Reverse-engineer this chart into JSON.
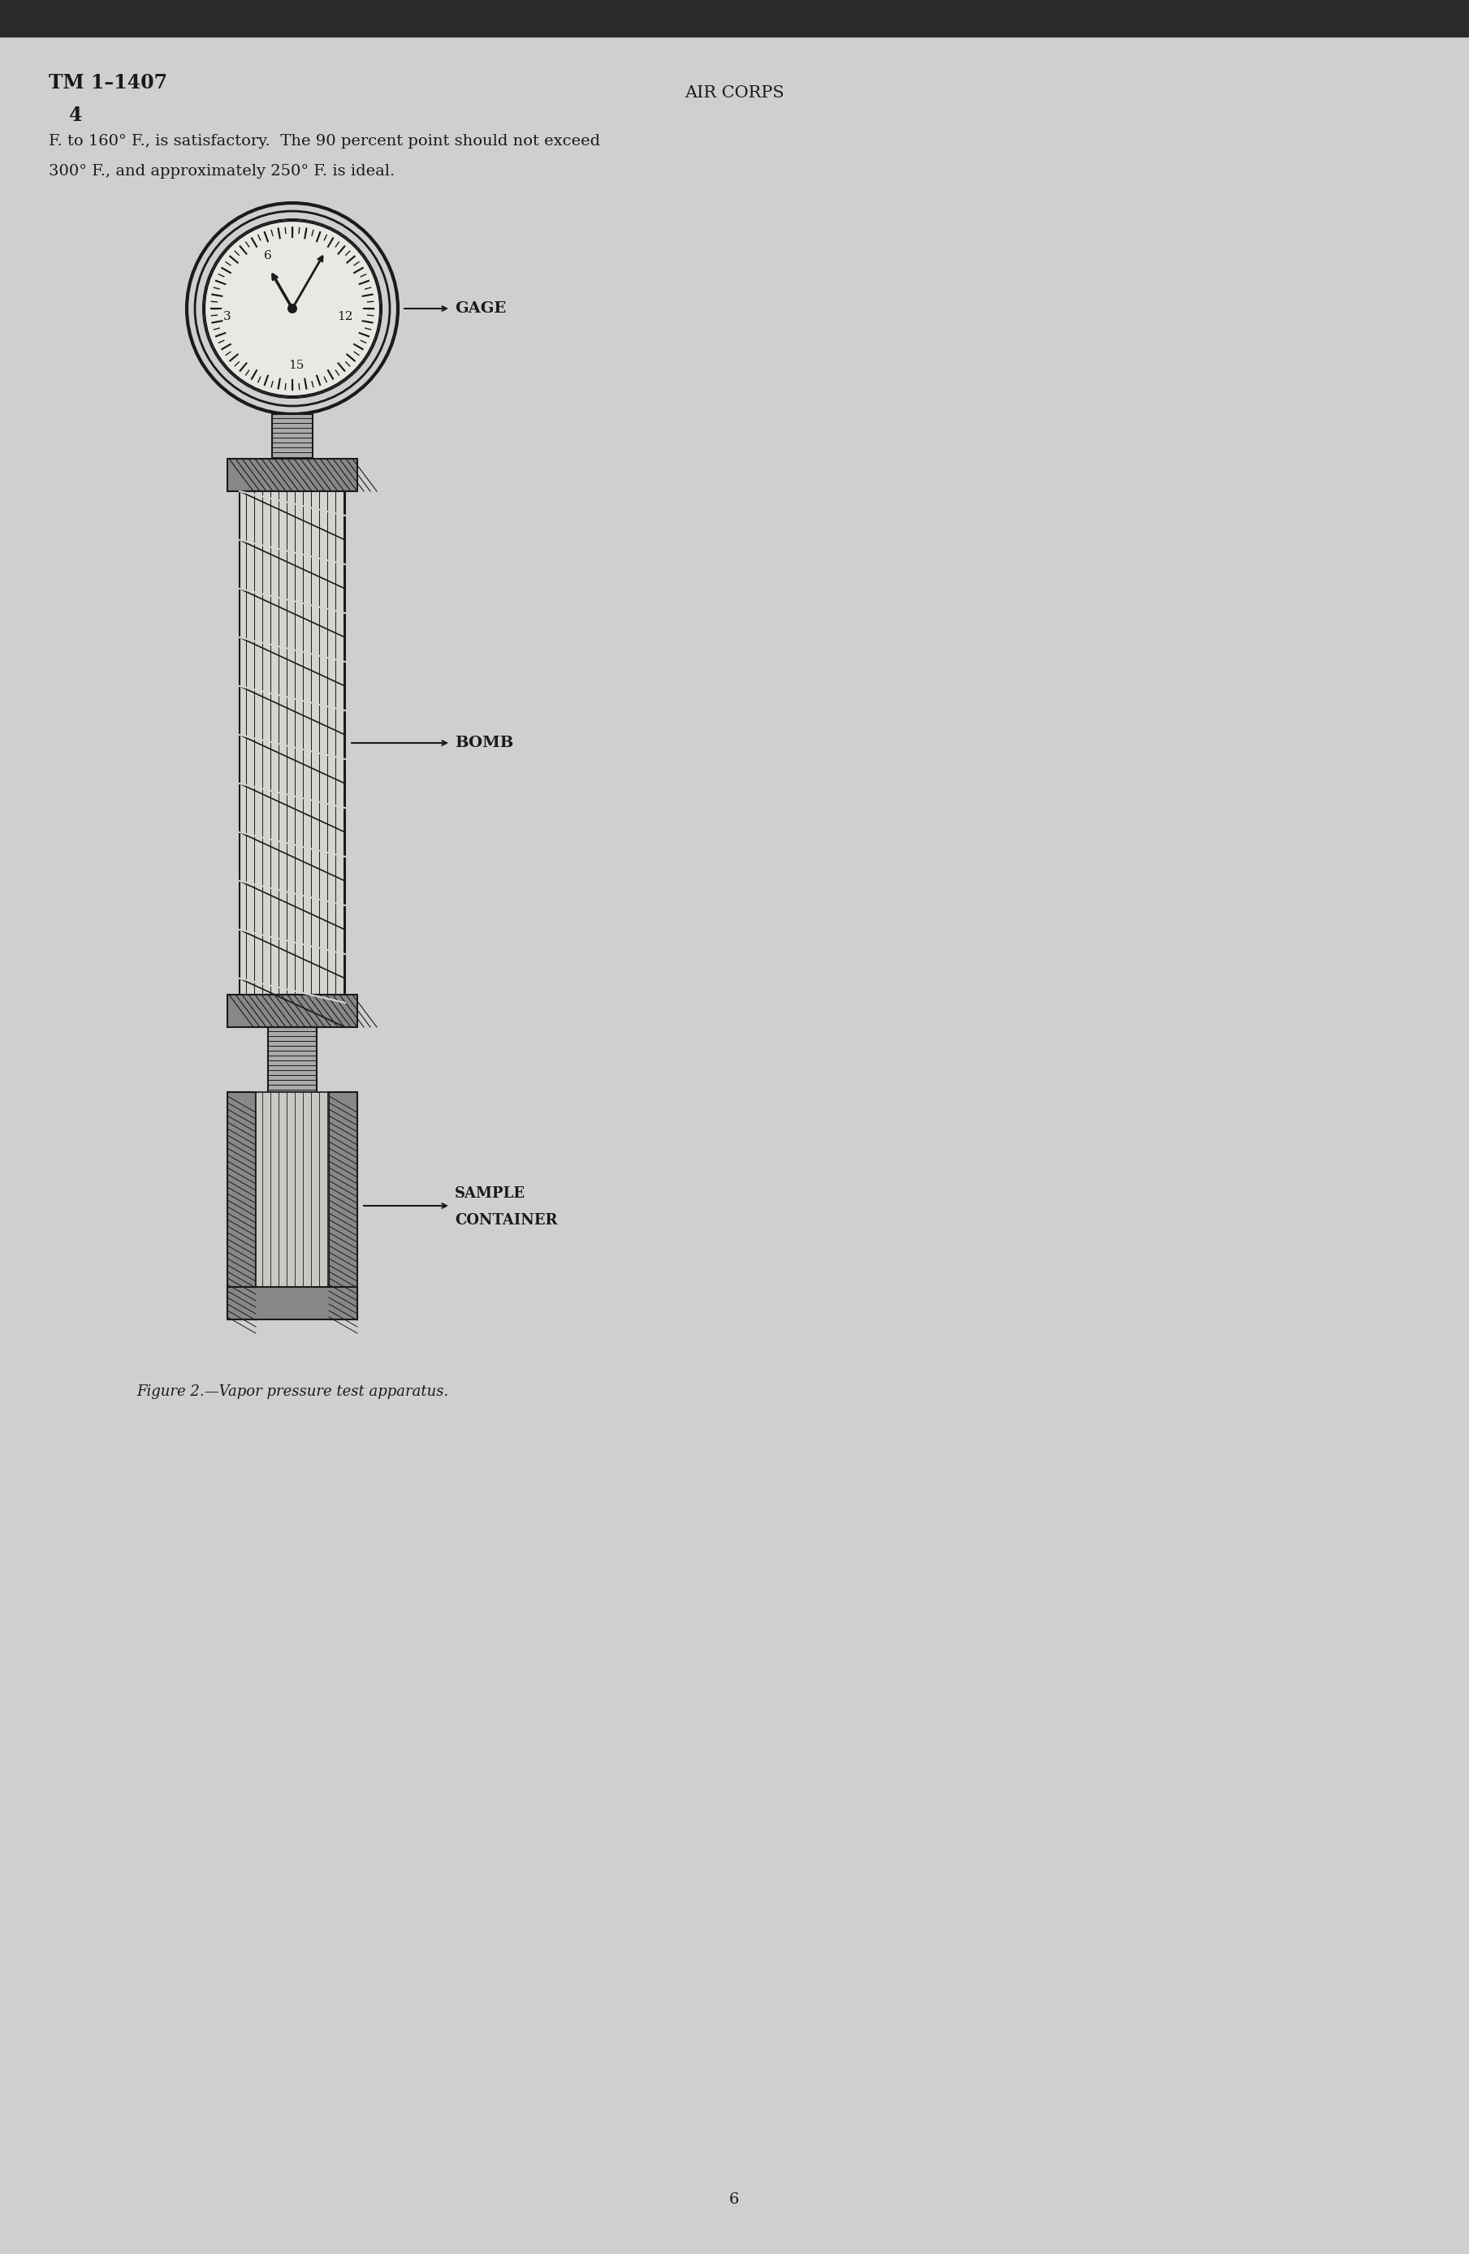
{
  "page_bg": "#d8d8d8",
  "paper_bg": "#cfd0ce",
  "header_line1": "TM 1–1407",
  "header_line2": "4",
  "header_center": "AIR CORPS",
  "body_text_line1": "F. to 160° F., is satisfactory.  The 90 percent point should not exceed",
  "body_text_line2": "300° F., and approximately 250° F. is ideal.",
  "label_gage": "GAGE",
  "label_bomb": "BOMB",
  "label_sample_container_line1": "SAMPLE",
  "label_sample_container_line2": "CONTAINER",
  "caption": "Figure 2.—Vapor pressure test apparatus.",
  "page_number": "6",
  "text_color": "#1a1a1a",
  "figure_color": "#1a1a1a"
}
